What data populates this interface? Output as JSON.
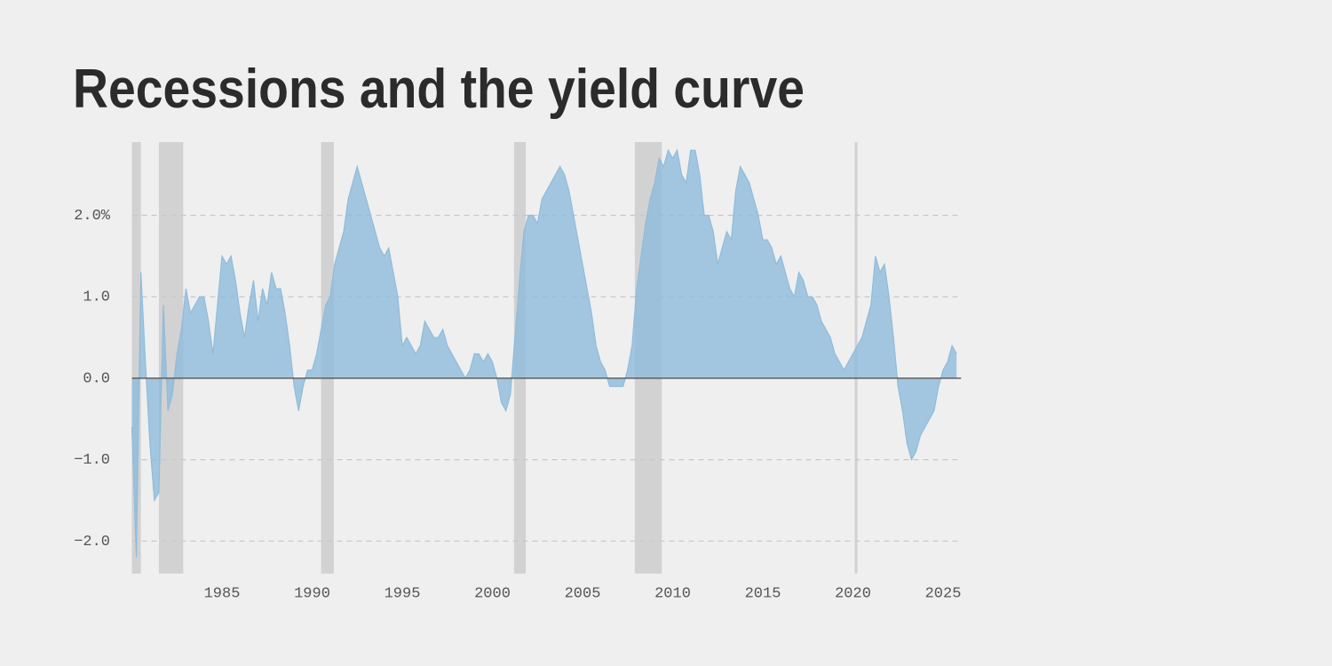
{
  "chart_data": {
    "type": "area",
    "title": "Recessions and the yield curve",
    "x": [
      1980,
      1980.25,
      1980.5,
      1980.75,
      1981,
      1981.25,
      1981.5,
      1981.75,
      1982,
      1982.25,
      1982.5,
      1982.75,
      1983,
      1983.25,
      1983.5,
      1983.75,
      1984,
      1984.25,
      1984.5,
      1984.75,
      1985,
      1985.25,
      1985.5,
      1985.75,
      1986,
      1986.25,
      1986.5,
      1986.75,
      1987,
      1987.25,
      1987.5,
      1987.75,
      1988,
      1988.25,
      1988.5,
      1988.75,
      1989,
      1989.25,
      1989.5,
      1989.75,
      1990,
      1990.25,
      1990.5,
      1990.75,
      1991,
      1991.25,
      1991.5,
      1991.75,
      1992,
      1992.25,
      1992.5,
      1992.75,
      1993,
      1993.25,
      1993.5,
      1993.75,
      1994,
      1994.25,
      1994.5,
      1994.75,
      1995,
      1995.25,
      1995.5,
      1995.75,
      1996,
      1996.25,
      1996.5,
      1996.75,
      1997,
      1997.25,
      1997.5,
      1997.75,
      1998,
      1998.25,
      1998.5,
      1998.75,
      1999,
      1999.25,
      1999.5,
      1999.75,
      2000,
      2000.25,
      2000.5,
      2000.75,
      2001,
      2001.25,
      2001.5,
      2001.75,
      2002,
      2002.25,
      2002.5,
      2002.75,
      2003,
      2003.25,
      2003.5,
      2003.75,
      2004,
      2004.25,
      2004.5,
      2004.75,
      2005,
      2005.25,
      2005.5,
      2005.75,
      2006,
      2006.25,
      2006.5,
      2006.75,
      2007,
      2007.25,
      2007.5,
      2007.75,
      2008,
      2008.25,
      2008.5,
      2008.75,
      2009,
      2009.25,
      2009.5,
      2009.75,
      2010,
      2010.25,
      2010.5,
      2010.75,
      2011,
      2011.25,
      2011.5,
      2011.75,
      2012,
      2012.25,
      2012.5,
      2012.75,
      2013,
      2013.25,
      2013.5,
      2013.75,
      2014,
      2014.25,
      2014.5,
      2014.75,
      2015,
      2015.25,
      2015.5,
      2015.75,
      2016,
      2016.25,
      2016.5,
      2016.75,
      2017,
      2017.25,
      2017.5,
      2017.75,
      2018,
      2018.25,
      2018.5,
      2018.75,
      2019,
      2019.25,
      2019.5,
      2019.75,
      2020,
      2020.25,
      2020.5,
      2020.75,
      2021,
      2021.25,
      2021.5,
      2021.75,
      2022,
      2022.25,
      2022.5,
      2022.75,
      2023,
      2023.25,
      2023.5,
      2023.75,
      2024,
      2024.25,
      2024.5,
      2024.75,
      2025,
      2025.25,
      2025.5,
      2025.75
    ],
    "values": [
      -0.6,
      -2.2,
      1.3,
      0.2,
      -0.8,
      -1.5,
      -1.4,
      0.9,
      -0.4,
      -0.2,
      0.3,
      0.6,
      1.1,
      0.8,
      0.9,
      1.0,
      1.0,
      0.7,
      0.3,
      0.9,
      1.5,
      1.4,
      1.5,
      1.2,
      0.8,
      0.5,
      0.9,
      1.2,
      0.7,
      1.1,
      0.9,
      1.3,
      1.1,
      1.1,
      0.8,
      0.4,
      -0.1,
      -0.4,
      -0.1,
      0.1,
      0.1,
      0.3,
      0.6,
      0.9,
      1.0,
      1.4,
      1.6,
      1.8,
      2.2,
      2.4,
      2.6,
      2.4,
      2.2,
      2.0,
      1.8,
      1.6,
      1.5,
      1.6,
      1.3,
      1.0,
      0.4,
      0.5,
      0.4,
      0.3,
      0.4,
      0.7,
      0.6,
      0.5,
      0.5,
      0.6,
      0.4,
      0.3,
      0.2,
      0.1,
      0.0,
      0.1,
      0.3,
      0.3,
      0.2,
      0.3,
      0.2,
      0.0,
      -0.3,
      -0.4,
      -0.2,
      0.5,
      1.2,
      1.8,
      2.0,
      2.0,
      1.9,
      2.2,
      2.3,
      2.4,
      2.5,
      2.6,
      2.5,
      2.3,
      2.0,
      1.7,
      1.4,
      1.1,
      0.8,
      0.4,
      0.2,
      0.1,
      -0.1,
      -0.1,
      -0.1,
      -0.1,
      0.1,
      0.4,
      1.1,
      1.5,
      1.9,
      2.2,
      2.4,
      2.7,
      2.6,
      2.8,
      2.7,
      2.8,
      2.5,
      2.4,
      2.8,
      2.8,
      2.5,
      2.0,
      2.0,
      1.8,
      1.4,
      1.6,
      1.8,
      1.7,
      2.3,
      2.6,
      2.5,
      2.4,
      2.2,
      2.0,
      1.7,
      1.7,
      1.6,
      1.4,
      1.5,
      1.3,
      1.1,
      1.0,
      1.3,
      1.2,
      1.0,
      1.0,
      0.9,
      0.7,
      0.6,
      0.5,
      0.3,
      0.2,
      0.1,
      0.2,
      0.3,
      0.4,
      0.5,
      0.7,
      0.9,
      1.5,
      1.3,
      1.4,
      1.0,
      0.5,
      -0.1,
      -0.4,
      -0.8,
      -1.0,
      -0.9,
      -0.7,
      -0.6,
      -0.5,
      -0.4,
      -0.1,
      0.1,
      0.2,
      0.4,
      0.3
    ],
    "color": "#8fbcdb",
    "recessions": [
      [
        1980.0,
        1980.5
      ],
      [
        1981.5,
        1982.85
      ],
      [
        1990.5,
        1991.2
      ],
      [
        2001.2,
        2001.85
      ],
      [
        2007.9,
        2009.4
      ],
      [
        2020.1,
        2020.25
      ]
    ],
    "recession_color": "#d2d2d2",
    "xlim": [
      1980,
      2026
    ],
    "xticks": [
      1985,
      1990,
      1995,
      2000,
      2005,
      2010,
      2015,
      2020,
      2025
    ],
    "ylim": [
      -2.4,
      2.9
    ],
    "yticks": [
      {
        "value": -2,
        "label": "−2.0"
      },
      {
        "value": -1,
        "label": "−1.0"
      },
      {
        "value": 0,
        "label": "0.0"
      },
      {
        "value": 1,
        "label": "1.0"
      },
      {
        "value": 2,
        "label": "2.0%"
      }
    ],
    "grid": true
  }
}
